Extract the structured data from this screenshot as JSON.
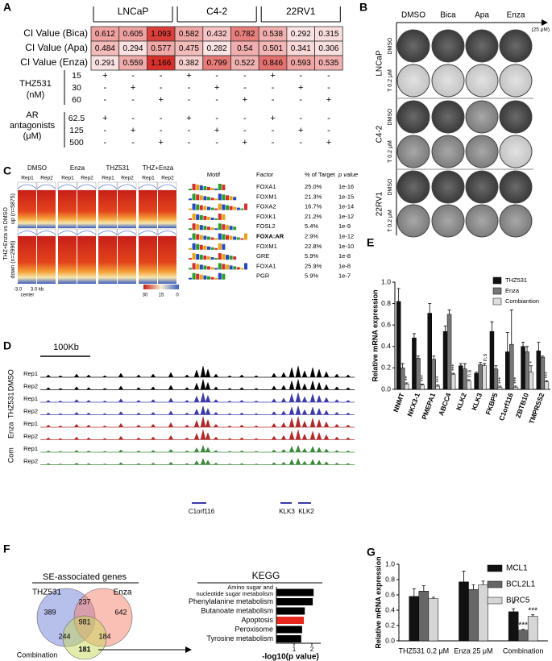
{
  "panel_letters": [
    "A",
    "B",
    "C",
    "D",
    "E",
    "F",
    "G"
  ],
  "panel_a": {
    "cell_lines": [
      "LNCaP",
      "C4-2",
      "22RV1"
    ],
    "ci_rows": [
      {
        "label": "CI Value (Bica)",
        "values": [
          0.612,
          0.605,
          1.093,
          0.582,
          0.432,
          0.782,
          0.538,
          0.292,
          0.315
        ]
      },
      {
        "label": "CI Value (Apa)",
        "values": [
          0.484,
          0.294,
          0.577,
          0.475,
          0.282,
          0.54,
          0.501,
          0.341,
          0.306
        ]
      },
      {
        "label": "CI Value (Enza)",
        "values": [
          0.291,
          0.559,
          1.166,
          0.382,
          0.799,
          0.522,
          0.846,
          0.593,
          0.535
        ]
      }
    ],
    "colorscale": {
      "low": "#fbe4e4",
      "high": "#d7302b"
    },
    "thz531": {
      "label": [
        "THZ531",
        "(nM)"
      ],
      "doses": [
        15,
        30,
        60
      ],
      "rows": [
        [
          "+",
          "-",
          "-",
          "+",
          "-",
          "-",
          "+",
          "-",
          "-"
        ],
        [
          "-",
          "+",
          "-",
          "-",
          "+",
          "-",
          "-",
          "+",
          "-"
        ],
        [
          "-",
          "-",
          "+",
          "-",
          "-",
          "+",
          "-",
          "-",
          "+"
        ]
      ]
    },
    "ar": {
      "label": [
        "AR",
        "antagonists",
        "(μM)"
      ],
      "doses": [
        62.5,
        125,
        500
      ],
      "rows": [
        [
          "+",
          "-",
          "-",
          "+",
          "-",
          "-",
          "+",
          "-",
          "-"
        ],
        [
          "-",
          "+",
          "-",
          "-",
          "+",
          "-",
          "-",
          "+",
          "-"
        ],
        [
          "-",
          "-",
          "+",
          "-",
          "-",
          "+",
          "-",
          "-",
          "+"
        ]
      ]
    }
  },
  "panel_b": {
    "columns": [
      "DMSO",
      "Bica",
      "Apa",
      "Enza"
    ],
    "concentration": "(25 μM)",
    "cell_lines": [
      "LNCaP",
      "C4-2",
      "22RV1"
    ],
    "treatments": [
      "DMSO",
      "T 0.2 μM"
    ]
  },
  "panel_c": {
    "conditions": [
      "DMSO",
      "Enza",
      "THZ531",
      "THZ+Enza"
    ],
    "replicates": [
      "Rep1",
      "Rep2"
    ],
    "comparison": "THZ+Enza vs DMSO",
    "groups": [
      "up (n=5875)",
      "down (n=2996)"
    ],
    "axis_labels": [
      "-3.0",
      "3.0 kb"
    ],
    "center": "center",
    "colorbar_ticks": [
      30,
      15,
      0
    ],
    "motif_table": {
      "columns": [
        "Motif",
        "Factor",
        "% of Target",
        "p value"
      ],
      "rows": [
        [
          "FOXA1",
          "25.0%",
          "1e-16"
        ],
        [
          "FOXM1",
          "21.3%",
          "1e-15"
        ],
        [
          "FOXA2",
          "16.7%",
          "1e-14"
        ],
        [
          "FOXK1",
          "21.2%",
          "1e-12"
        ],
        [
          "FOSL2",
          "5.4%",
          "1e-9"
        ],
        [
          "FOXA:AR",
          "2.9%",
          "1e-12"
        ],
        [
          "FOXM1",
          "22.8%",
          "1e-10"
        ],
        [
          "GRE",
          "5.9%",
          "1e-8"
        ],
        [
          "FOXA1",
          "25.9%",
          "1e-8"
        ],
        [
          "PGR",
          "5.9%",
          "1e-7"
        ]
      ],
      "highlight_row": 5,
      "highlight_color": "#e8281e"
    }
  },
  "panel_d": {
    "scale": "100Kb",
    "tracks": [
      {
        "name": "DMSO",
        "color": "#000000"
      },
      {
        "name": "THZ531",
        "color": "#3a3aa8"
      },
      {
        "name": "Enza",
        "color": "#b02a2a"
      },
      {
        "name": "Com",
        "color": "#3a8a3a"
      }
    ],
    "replicates": [
      "Rep1",
      "Rep2"
    ],
    "genes": [
      "C1orf116",
      "KLK3",
      "KLK2"
    ]
  },
  "panel_f": {
    "venn": {
      "title": "SE-associated genes",
      "sets": [
        "THZ531",
        "Enza",
        "Combination"
      ],
      "set_colors": [
        "#6f7fd8",
        "#f5806c",
        "#c8d85c"
      ],
      "counts": [
        389,
        237,
        642,
        981,
        244,
        184,
        181
      ],
      "count_colors": [
        "#000000",
        "#000000",
        "#000000",
        "#000000",
        "#000000",
        "#000000",
        "#e8281e"
      ]
    }
  },
  "chart_data": [
    {
      "type": "bar",
      "ylabel": "Relative mRNA expression",
      "categories": [
        "NNMT",
        "NKX3-1",
        "PMEPA1",
        "ABCC4",
        "KLK2",
        "KLK3",
        "FKBP5",
        "C1orf116",
        "ZBTB10",
        "TMPRSS2"
      ],
      "series": [
        {
          "name": "THZ531",
          "color": "#111111",
          "values": [
            0.82,
            0.48,
            0.71,
            0.54,
            0.22,
            0.15,
            0.54,
            0.35,
            0.4,
            0.36
          ],
          "errors": [
            0.12,
            0.04,
            0.09,
            0.05,
            0.02,
            0.01,
            0.09,
            0.18,
            0.04,
            0.08
          ]
        },
        {
          "name": "Enza",
          "color": "#777777",
          "values": [
            0.2,
            0.29,
            0.28,
            0.7,
            0.19,
            0.23,
            0.19,
            0.42,
            0.35,
            0.3
          ],
          "errors": [
            0.04,
            0.02,
            0.03,
            0.04,
            0.05,
            0.02,
            0.03,
            0.32,
            0.05,
            0.01
          ]
        },
        {
          "name": "Combiantion",
          "color": "#dddddd",
          "values": [
            0.05,
            0.04,
            0.03,
            0.14,
            0.08,
            0.22,
            0.02,
            0.02,
            0.16,
            0.07
          ],
          "errors": [
            0.01,
            0.01,
            0.01,
            0.01,
            0.01,
            0.02,
            0.01,
            0.01,
            0.06,
            0.01
          ],
          "annotations": [
            "**",
            "***",
            "***",
            "***",
            "n.s",
            "n.s",
            "***",
            "***",
            "*",
            "***"
          ]
        }
      ],
      "ylim": [
        0,
        1
      ],
      "yticks": [
        {
          "value": 0,
          "label": "0.0"
        },
        0.2,
        0.4,
        0.6,
        0.8,
        {
          "value": 1,
          "label": "1.0"
        }
      ]
    },
    {
      "type": "bar",
      "ylabel": "Relative mRNA expression",
      "categories": [
        "THZ531 0.2 μM",
        "Enza 25 μM",
        "Combination"
      ],
      "series": [
        {
          "name": "MCL1",
          "color": "#111111",
          "values": [
            0.58,
            0.77,
            0.38
          ],
          "errors": [
            0.1,
            0.14,
            0.04
          ],
          "annotations": [
            null,
            null,
            "*"
          ]
        },
        {
          "name": "BCL2L1",
          "color": "#666666",
          "values": [
            0.65,
            0.67,
            0.14
          ],
          "errors": [
            0.07,
            0.06,
            0.01
          ],
          "annotations": [
            null,
            null,
            "***"
          ]
        },
        {
          "name": "BIRC5",
          "color": "#d6d6d6",
          "values": [
            0.55,
            0.73,
            0.32
          ],
          "errors": [
            0.02,
            0.05,
            0.02
          ],
          "annotations": [
            null,
            null,
            "***"
          ]
        }
      ],
      "ylim": [
        0,
        1
      ],
      "yticks": [
        {
          "value": 0,
          "label": "0.0"
        },
        0.2,
        0.4,
        0.6,
        0.8,
        {
          "value": 1,
          "label": "1.0"
        }
      ]
    },
    {
      "type": "hbar",
      "title": "KEGG",
      "xlabel": "-log10(p value)",
      "categories": [
        "Amino sugar and\nnucleotide sugar metabolism",
        "Phenylalanine metabolism",
        "Butanoate metabolism",
        "Apoptosis",
        "Peroxisome",
        "Tyrosine metabolism"
      ],
      "values": [
        2.1,
        2.05,
        1.6,
        1.55,
        1.45,
        1.4
      ],
      "colors": [
        "#000000",
        "#000000",
        "#000000",
        "#e8281e",
        "#000000",
        "#000000"
      ],
      "label_colors": [
        "#000000",
        "#000000",
        "#000000",
        "#e8281e",
        "#000000",
        "#000000"
      ],
      "xlim": [
        0,
        2.5
      ],
      "xticks": [
        1,
        2
      ]
    }
  ]
}
